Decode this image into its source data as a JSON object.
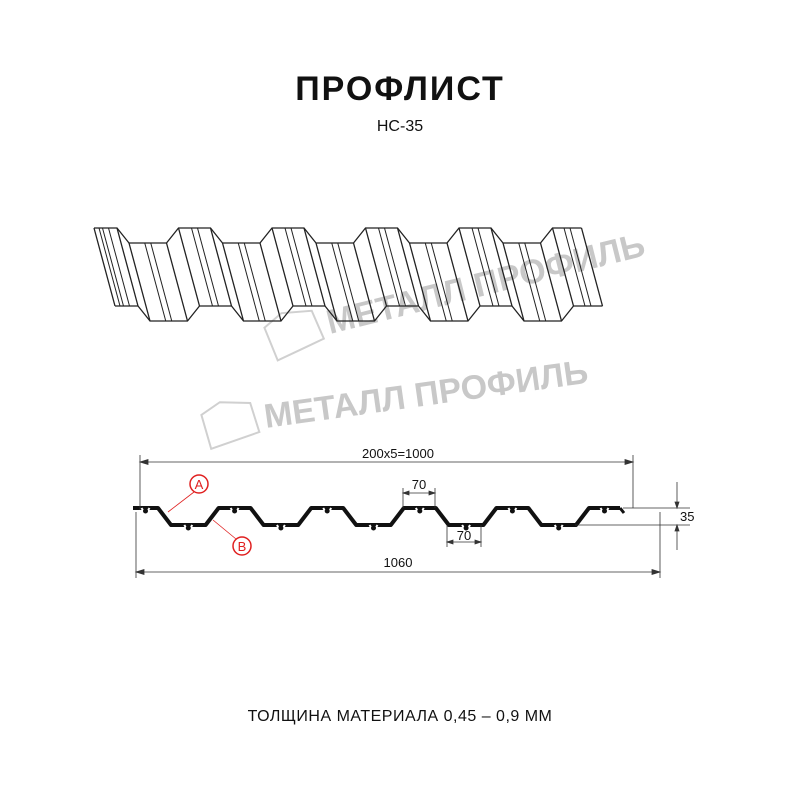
{
  "header": {
    "title": "ПРОФЛИСТ",
    "model": "НС-35"
  },
  "watermark": {
    "text": "МЕТАЛЛ ПРОФИЛЬ"
  },
  "drawing": {
    "dim_pitch": "200x5=1000",
    "dim_top": "70",
    "dim_bottom": "70",
    "dim_height": "35",
    "dim_total": "1060",
    "marker_a": "A",
    "marker_b": "B",
    "marker_color": "#e02020"
  },
  "footer": {
    "thickness": "ТОЛЩИНА МАТЕРИАЛА 0,45 – 0,9 ММ"
  }
}
